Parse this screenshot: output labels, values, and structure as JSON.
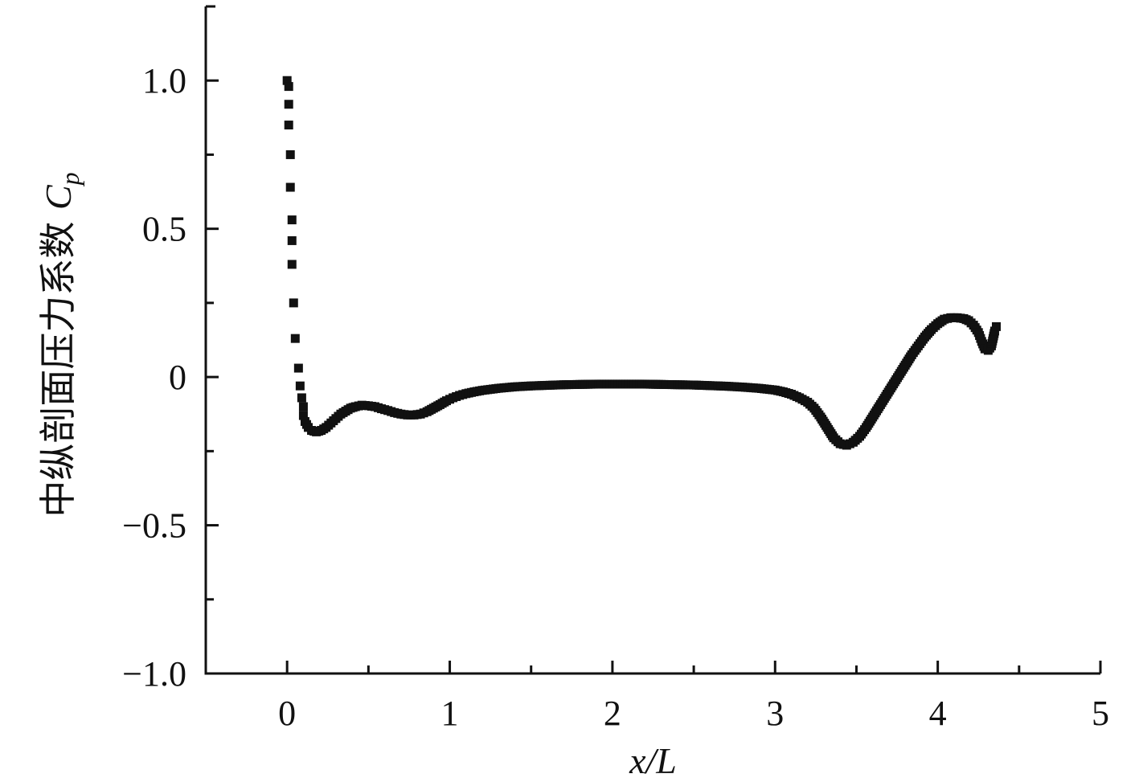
{
  "chart_data": {
    "type": "scatter",
    "xlabel": "x/L",
    "ylabel": "中纵剖面压力系数 Cp",
    "ylabel_prefix": "中纵剖面压力系数 ",
    "ylabel_symbol": "C",
    "ylabel_subscript": "p",
    "xlim": [
      -0.5,
      5
    ],
    "ylim": [
      -1.0,
      1.25
    ],
    "x_ticks": [
      0,
      1,
      2,
      3,
      4,
      5
    ],
    "x_tick_labels": [
      "0",
      "1",
      "2",
      "3",
      "4",
      "5"
    ],
    "x_minor_ticks": [
      0.5,
      1.5,
      2.5,
      3.5,
      4.5
    ],
    "y_ticks": [
      -1.0,
      -0.5,
      0,
      0.5,
      1.0
    ],
    "y_tick_labels": [
      "−1.0",
      "−0.5",
      "0",
      "0.5",
      "1.0"
    ],
    "y_minor_ticks": [
      -0.75,
      -0.25,
      0.25,
      0.75
    ],
    "grid": false,
    "marker_color": "#111111",
    "marker": "square",
    "series": [
      {
        "points": [
          [
            0.0,
            1.0
          ],
          [
            0.01,
            0.98
          ],
          [
            0.01,
            0.92
          ],
          [
            0.01,
            0.85
          ],
          [
            0.02,
            0.75
          ],
          [
            0.02,
            0.64
          ],
          [
            0.03,
            0.53
          ],
          [
            0.03,
            0.46
          ],
          [
            0.03,
            0.38
          ],
          [
            0.04,
            0.25
          ],
          [
            0.05,
            0.13
          ],
          [
            0.07,
            0.03
          ],
          [
            0.08,
            -0.03
          ],
          [
            0.09,
            -0.07
          ],
          [
            0.1,
            -0.1
          ],
          [
            0.1,
            -0.13
          ],
          [
            0.11,
            -0.15
          ],
          [
            0.13,
            -0.17
          ],
          [
            0.15,
            -0.18
          ],
          [
            0.18,
            -0.185
          ],
          [
            0.21,
            -0.18
          ],
          [
            0.24,
            -0.17
          ],
          [
            0.27,
            -0.155
          ],
          [
            0.3,
            -0.14
          ],
          [
            0.33,
            -0.125
          ],
          [
            0.36,
            -0.115
          ],
          [
            0.39,
            -0.105
          ],
          [
            0.42,
            -0.1
          ],
          [
            0.46,
            -0.095
          ],
          [
            0.5,
            -0.097
          ],
          [
            0.54,
            -0.1
          ],
          [
            0.58,
            -0.107
          ],
          [
            0.62,
            -0.113
          ],
          [
            0.66,
            -0.12
          ],
          [
            0.7,
            -0.125
          ],
          [
            0.74,
            -0.128
          ],
          [
            0.78,
            -0.128
          ],
          [
            0.82,
            -0.125
          ],
          [
            0.86,
            -0.117
          ],
          [
            0.9,
            -0.105
          ],
          [
            0.94,
            -0.093
          ],
          [
            0.98,
            -0.08
          ],
          [
            1.02,
            -0.07
          ],
          [
            1.06,
            -0.062
          ],
          [
            1.1,
            -0.056
          ],
          [
            1.15,
            -0.05
          ],
          [
            1.2,
            -0.045
          ],
          [
            1.3,
            -0.038
          ],
          [
            1.4,
            -0.033
          ],
          [
            1.5,
            -0.03
          ],
          [
            1.6,
            -0.028
          ],
          [
            1.7,
            -0.026
          ],
          [
            1.8,
            -0.025
          ],
          [
            1.9,
            -0.024
          ],
          [
            2.0,
            -0.024
          ],
          [
            2.1,
            -0.024
          ],
          [
            2.2,
            -0.024
          ],
          [
            2.3,
            -0.025
          ],
          [
            2.4,
            -0.026
          ],
          [
            2.5,
            -0.027
          ],
          [
            2.6,
            -0.029
          ],
          [
            2.7,
            -0.031
          ],
          [
            2.8,
            -0.034
          ],
          [
            2.9,
            -0.038
          ],
          [
            3.0,
            -0.044
          ],
          [
            3.05,
            -0.05
          ],
          [
            3.1,
            -0.058
          ],
          [
            3.15,
            -0.07
          ],
          [
            3.2,
            -0.085
          ],
          [
            3.24,
            -0.105
          ],
          [
            3.28,
            -0.135
          ],
          [
            3.32,
            -0.17
          ],
          [
            3.36,
            -0.205
          ],
          [
            3.4,
            -0.225
          ],
          [
            3.44,
            -0.23
          ],
          [
            3.48,
            -0.22
          ],
          [
            3.52,
            -0.2
          ],
          [
            3.56,
            -0.17
          ],
          [
            3.6,
            -0.135
          ],
          [
            3.64,
            -0.1
          ],
          [
            3.68,
            -0.065
          ],
          [
            3.72,
            -0.03
          ],
          [
            3.76,
            0.005
          ],
          [
            3.8,
            0.04
          ],
          [
            3.84,
            0.075
          ],
          [
            3.88,
            0.105
          ],
          [
            3.92,
            0.135
          ],
          [
            3.96,
            0.16
          ],
          [
            4.0,
            0.18
          ],
          [
            4.04,
            0.195
          ],
          [
            4.08,
            0.2
          ],
          [
            4.12,
            0.2
          ],
          [
            4.16,
            0.197
          ],
          [
            4.19,
            0.19
          ],
          [
            4.22,
            0.175
          ],
          [
            4.25,
            0.15
          ],
          [
            4.27,
            0.12
          ],
          [
            4.29,
            0.095
          ],
          [
            4.31,
            0.09
          ],
          [
            4.33,
            0.105
          ],
          [
            4.34,
            0.13
          ],
          [
            4.35,
            0.155
          ],
          [
            4.36,
            0.17
          ]
        ]
      }
    ]
  }
}
